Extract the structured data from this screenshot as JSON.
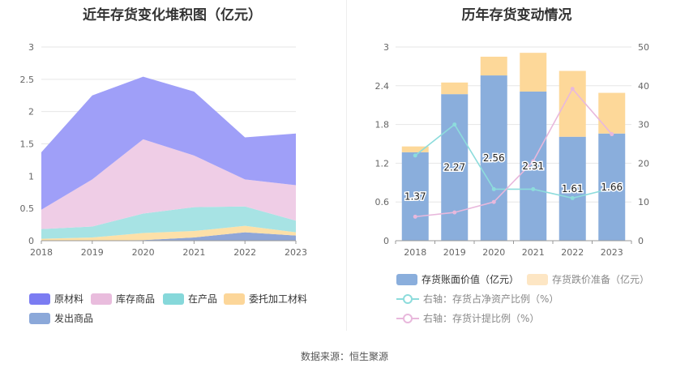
{
  "left_chart_title": "近年存货变化堆积图（亿元）",
  "right_chart_title": "历年存货变动情况",
  "source": "数据来源：恒生聚源",
  "chart_data": [
    {
      "type": "area",
      "stacked": true,
      "title": "近年存货变化堆积图（亿元）",
      "categories": [
        "2018",
        "2019",
        "2020",
        "2021",
        "2022",
        "2023"
      ],
      "ylim": [
        0,
        3
      ],
      "yticks": [
        "0",
        "0.5",
        "1",
        "1.5",
        "2",
        "2.5",
        "3"
      ],
      "series": [
        {
          "name": "发出商品",
          "color": "#8fa6d8",
          "values": [
            0.0,
            0.0,
            0.01,
            0.05,
            0.13,
            0.08
          ]
        },
        {
          "name": "委托加工材料",
          "color": "#fde0a8",
          "values": [
            0.03,
            0.05,
            0.11,
            0.1,
            0.1,
            0.05
          ]
        },
        {
          "name": "在产品",
          "color": "#a7e3e4",
          "values": [
            0.15,
            0.17,
            0.3,
            0.37,
            0.3,
            0.18
          ]
        },
        {
          "name": "库存商品",
          "color": "#efcde6",
          "values": [
            0.3,
            0.73,
            1.15,
            0.8,
            0.42,
            0.55
          ]
        },
        {
          "name": "原材料",
          "color": "#9f9ff8",
          "values": [
            0.89,
            1.3,
            0.97,
            0.99,
            0.65,
            0.8
          ]
        }
      ],
      "legend": [
        {
          "name": "原材料",
          "color": "#7b7cf2"
        },
        {
          "name": "库存商品",
          "color": "#e9bcdd"
        },
        {
          "name": "在产品",
          "color": "#86d8da"
        },
        {
          "name": "委托加工材料",
          "color": "#fcd699"
        },
        {
          "name": "发出商品",
          "color": "#8ba8d9"
        }
      ]
    },
    {
      "type": "bar",
      "stacked": true,
      "title": "历年存货变动情况",
      "categories": [
        "2018",
        "2019",
        "2020",
        "2021",
        "2022",
        "2023"
      ],
      "ylim": [
        0,
        3
      ],
      "yticks": [
        "0",
        "0.6",
        "1.2",
        "1.8",
        "2.4",
        "3"
      ],
      "y2lim": [
        0,
        50
      ],
      "y2ticks": [
        "0",
        "10",
        "20",
        "30",
        "40",
        "50"
      ],
      "series": [
        {
          "name": "存货账面价值（亿元）",
          "color": "#8aaedc",
          "values": [
            1.37,
            2.27,
            2.56,
            2.31,
            1.61,
            1.66
          ],
          "labels": [
            "1.37",
            "2.27",
            "2.56",
            "2.31",
            "1.61",
            "1.66"
          ]
        },
        {
          "name": "存货跌价准备（亿元）",
          "color": "#fdd899",
          "values": [
            0.09,
            0.18,
            0.29,
            0.6,
            1.02,
            0.63
          ]
        }
      ],
      "lines": [
        {
          "name": "右轴：存货占净资产比例（%）",
          "color": "#8ddcdc",
          "values": [
            22,
            30,
            13.3,
            13.3,
            11,
            13.5
          ]
        },
        {
          "name": "右轴：存货计提比例（%）",
          "color": "#e8b8dc",
          "values": [
            6.2,
            7.3,
            10,
            20.5,
            39.2,
            27.5
          ]
        }
      ],
      "legend": [
        {
          "name": "存货账面价值（亿元）",
          "color": "#8aaedc",
          "kind": "bar"
        },
        {
          "name": "存货跌价准备（亿元）",
          "color": "#fde6c4",
          "kind": "bar"
        },
        {
          "name": "右轴：存货占净资产比例（%）",
          "color": "#8ddcdc",
          "kind": "line"
        },
        {
          "name": "右轴：存货计提比例（%）",
          "color": "#e8b8dc",
          "kind": "line"
        }
      ]
    }
  ]
}
